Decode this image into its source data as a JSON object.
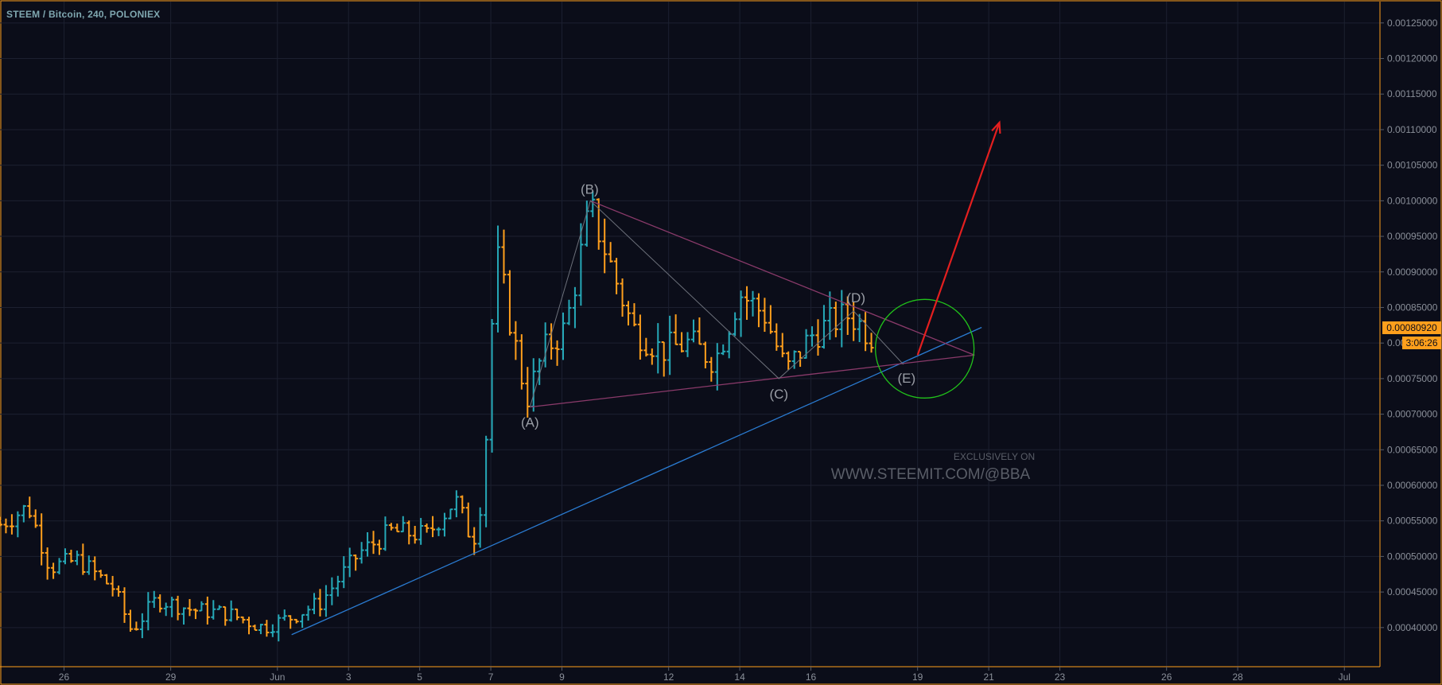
{
  "title": "STEEM / Bitcoin, 240, POLONIEX",
  "watermark": {
    "small": "EXCLUSIVELY ON",
    "big": "WWW.STEEMIT.COM/@BBA"
  },
  "last_price": "0.00080920",
  "countdown": "3:06:26",
  "colors": {
    "background": "#0b0d19",
    "border": "#ff9f1c",
    "grid": "#1c2030",
    "up": "#26a9b8",
    "down": "#ff9f1c",
    "trendline": "#2a7bd1",
    "triangle": "#8a3a6a",
    "wave_path": "#6c707a",
    "arrow": "#e41f1f",
    "circle": "#21c21a",
    "price_label_bg": "#ff9f1c"
  },
  "chart_data": {
    "type": "ohlc",
    "title": "STEEM / Bitcoin, 240, POLONIEX",
    "y_axis": {
      "ylim": [
        0.000345,
        0.00128
      ],
      "ticks": [
        "0.00040000",
        "0.00045000",
        "0.00050000",
        "0.00055000",
        "0.00060000",
        "0.00065000",
        "0.00070000",
        "0.00075000",
        "0.00080000",
        "0.00085000",
        "0.00090000",
        "0.00095000",
        "0.00100000",
        "0.00105000",
        "0.00110000",
        "0.00115000",
        "0.00120000",
        "0.00125000"
      ]
    },
    "x_axis": {
      "ticks": [
        {
          "label": "26",
          "day": 26
        },
        {
          "label": "29",
          "day": 29
        },
        {
          "label": "Jun",
          "day": 32
        },
        {
          "label": "3",
          "day": 34
        },
        {
          "label": "5",
          "day": 36
        },
        {
          "label": "7",
          "day": 38
        },
        {
          "label": "9",
          "day": 40
        },
        {
          "label": "12",
          "day": 43
        },
        {
          "label": "14",
          "day": 45
        },
        {
          "label": "16",
          "day": 47
        },
        {
          "label": "19",
          "day": 50
        },
        {
          "label": "21",
          "day": 52
        },
        {
          "label": "23",
          "day": 54
        },
        {
          "label": "26",
          "day": 57
        },
        {
          "label": "28",
          "day": 59
        },
        {
          "label": "Jul",
          "day": 62
        }
      ],
      "day_range": [
        24.2,
        63.0
      ]
    },
    "waypoints": [
      {
        "day": 24.2,
        "price": 0.000545
      },
      {
        "day": 25.0,
        "price": 0.00057
      },
      {
        "day": 25.6,
        "price": 0.000485
      },
      {
        "day": 26.4,
        "price": 0.000495
      },
      {
        "day": 27.4,
        "price": 0.000455
      },
      {
        "day": 27.9,
        "price": 0.000395
      },
      {
        "day": 28.6,
        "price": 0.00044
      },
      {
        "day": 29.6,
        "price": 0.000425
      },
      {
        "day": 30.6,
        "price": 0.00042
      },
      {
        "day": 31.6,
        "price": 0.0004
      },
      {
        "day": 32.4,
        "price": 0.000415
      },
      {
        "day": 33.2,
        "price": 0.000435
      },
      {
        "day": 34.3,
        "price": 0.000505
      },
      {
        "day": 35.2,
        "price": 0.000535
      },
      {
        "day": 36.2,
        "price": 0.00053
      },
      {
        "day": 37.0,
        "price": 0.00058
      },
      {
        "day": 37.5,
        "price": 0.00052
      },
      {
        "day": 37.8,
        "price": 0.0006
      },
      {
        "day": 38.0,
        "price": 0.00081
      },
      {
        "day": 38.2,
        "price": 0.000915
      },
      {
        "day": 39.0,
        "price": 0.00072
      },
      {
        "day": 39.5,
        "price": 0.00079
      },
      {
        "day": 40.1,
        "price": 0.00082
      },
      {
        "day": 40.8,
        "price": 0.00099
      },
      {
        "day": 41.5,
        "price": 0.00089
      },
      {
        "day": 42.0,
        "price": 0.00082
      },
      {
        "day": 42.8,
        "price": 0.00079
      },
      {
        "day": 43.6,
        "price": 0.0008
      },
      {
        "day": 44.3,
        "price": 0.000775
      },
      {
        "day": 45.0,
        "price": 0.00087
      },
      {
        "day": 45.7,
        "price": 0.00084
      },
      {
        "day": 46.3,
        "price": 0.00076
      },
      {
        "day": 47.0,
        "price": 0.00081
      },
      {
        "day": 47.6,
        "price": 0.00083
      },
      {
        "day": 48.1,
        "price": 0.00084
      },
      {
        "day": 48.6,
        "price": 0.000815
      },
      {
        "day": 48.8,
        "price": 0.000809
      }
    ],
    "trendline": {
      "from": {
        "day": 32.4,
        "price": 0.00039
      },
      "to": {
        "day": 51.8,
        "price": 0.000822
      }
    },
    "triangle": {
      "A": {
        "day": 39.1,
        "price": 0.00071
      },
      "B": {
        "day": 40.8,
        "price": 0.001
      },
      "C": {
        "day": 46.1,
        "price": 0.00075
      },
      "D": {
        "day": 48.2,
        "price": 0.000845
      },
      "E": {
        "day": 49.6,
        "price": 0.00077
      },
      "apex": {
        "day": 51.6,
        "price": 0.000783
      }
    },
    "wave_labels": [
      "(A)",
      "(B)",
      "(C)",
      "(D)",
      "(E)"
    ],
    "arrow": {
      "from": {
        "day": 50.0,
        "price": 0.000783
      },
      "to": {
        "day": 52.3,
        "price": 0.00111
      }
    },
    "circle": {
      "center": {
        "day": 50.2,
        "price": 0.000792
      }
    }
  }
}
